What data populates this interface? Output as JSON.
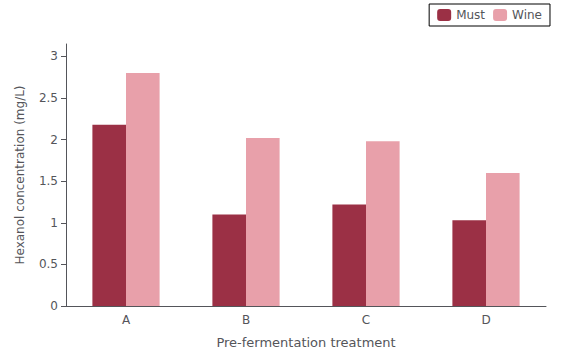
{
  "chart_data": {
    "type": "bar",
    "xlabel": "Pre-fermentation treatment",
    "ylabel": "Hexanol concentration (mg/L)",
    "categories": [
      "A",
      "B",
      "C",
      "D"
    ],
    "series": [
      {
        "name": "Must",
        "color": "#9B3045",
        "values": [
          2.18,
          1.1,
          1.22,
          1.03
        ]
      },
      {
        "name": "Wine",
        "color": "#E8A0AA",
        "values": [
          2.8,
          2.02,
          1.98,
          1.6
        ]
      }
    ],
    "ylim": [
      0,
      3.15
    ],
    "yticks": [
      0,
      0.5,
      1,
      1.5,
      2,
      2.5,
      3
    ],
    "grid": false,
    "legend": "upper right"
  }
}
